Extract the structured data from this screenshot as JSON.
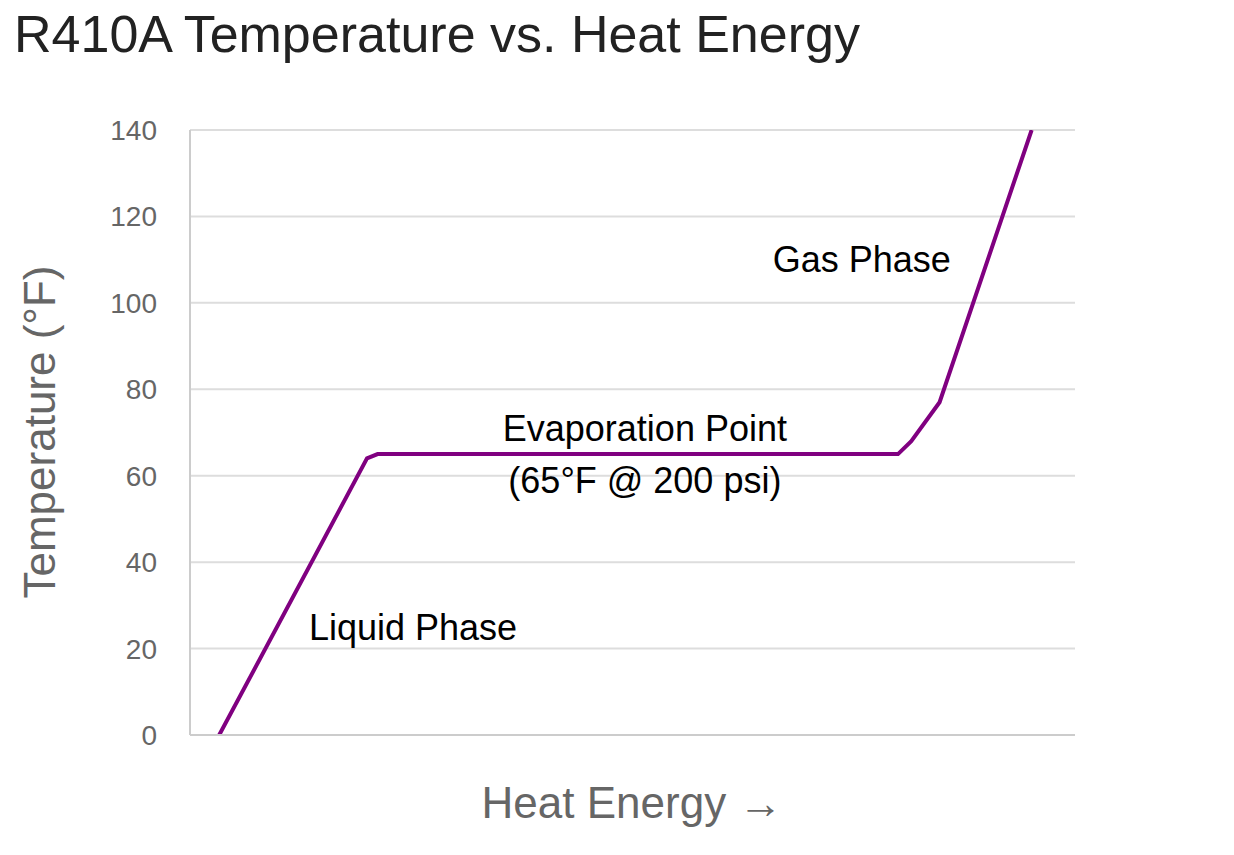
{
  "chart_data": {
    "type": "line",
    "title": "R410A Temperature vs. Heat Energy",
    "x_label": "Heat Energy →",
    "y_label": "Temperature (°F)",
    "x": [
      3.3,
      20.0,
      21.2,
      80.0,
      81.5,
      84.7,
      95.1
    ],
    "series": [
      {
        "name": "R410A",
        "color": "#800080",
        "values": [
          0,
          64,
          65,
          65,
          68,
          77,
          140
        ]
      }
    ],
    "xlim": [
      0,
      100
    ],
    "ylim": [
      0,
      140
    ],
    "yticks": [
      0,
      20,
      40,
      60,
      80,
      100,
      120,
      140
    ],
    "grid": true,
    "tick_labels": "y",
    "annotations": [
      {
        "text": "Liquid Phase",
        "x": 25.2,
        "y": 24.9
      },
      {
        "text": "Evaporation Point",
        "x": 51.4,
        "y": 70.9
      },
      {
        "text": "(65°F @ 200 psi)",
        "x": 51.4,
        "y": 58.9
      },
      {
        "text": "Gas Phase",
        "x": 75.9,
        "y": 110
      }
    ]
  }
}
